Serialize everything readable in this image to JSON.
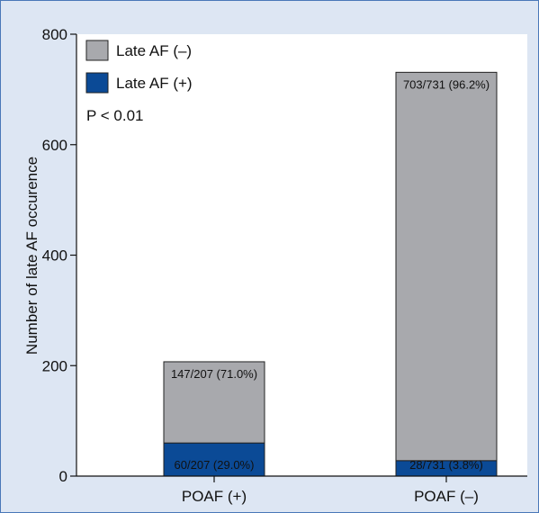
{
  "chart_data": {
    "type": "bar",
    "stacked": true,
    "categories": [
      "POAF (+)",
      "POAF (–)"
    ],
    "series": [
      {
        "name": "Late AF (+)",
        "color": "#0b4a96",
        "values": [
          60,
          28
        ],
        "labels": [
          "60/207 (29.0%)",
          "28/731 (3.8%)"
        ]
      },
      {
        "name": "Late AF (–)",
        "color": "#a8a9ad",
        "values": [
          147,
          703
        ],
        "labels": [
          "147/207 (71.0%)",
          "703/731 (96.2%)"
        ]
      }
    ],
    "legend_order": [
      1,
      0
    ],
    "legend_position": "top-left",
    "annotation": "P < 0.01",
    "ylabel": "Number of late AF occurence",
    "xlabel": "",
    "ylim": [
      0,
      800
    ],
    "yticks": [
      0,
      200,
      400,
      600,
      800
    ],
    "grid": false
  }
}
